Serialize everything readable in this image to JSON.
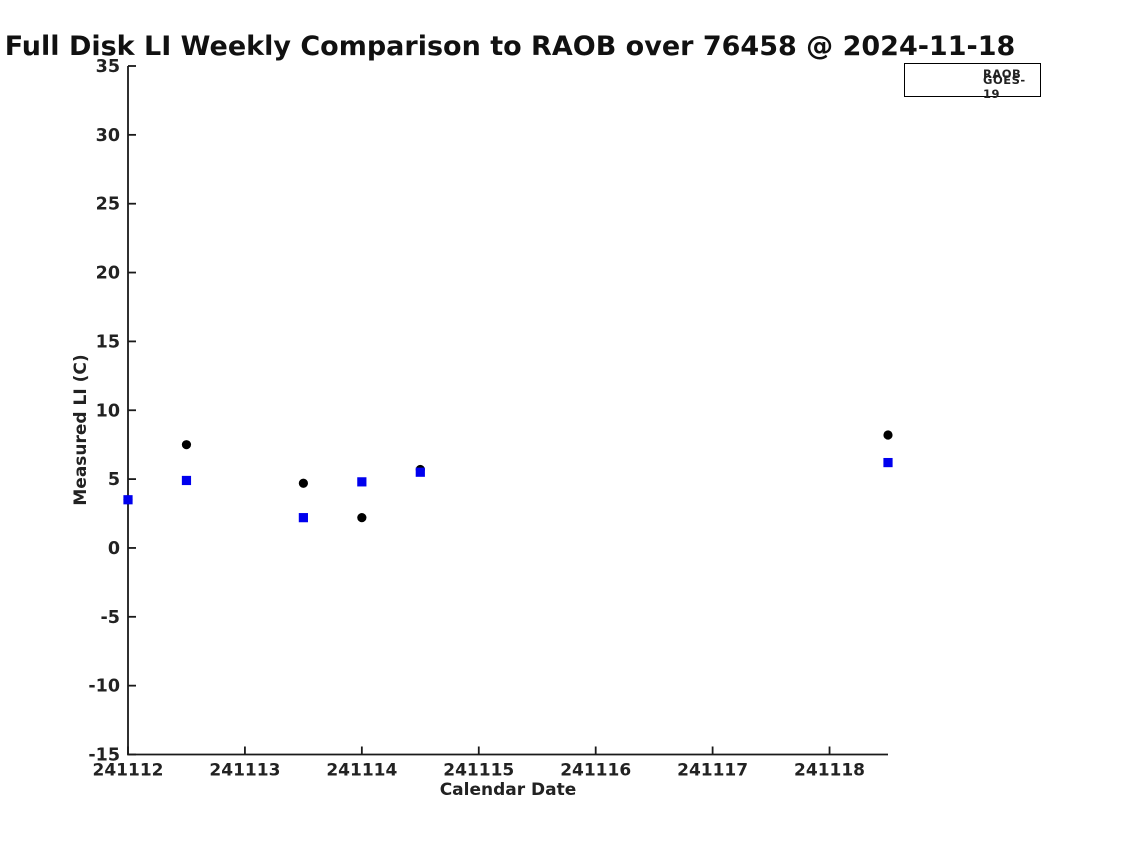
{
  "title": "Full Disk LI Weekly Comparison to RAOB over 76458 @ 2024-11-18",
  "chart_data": {
    "type": "scatter",
    "title": "Full Disk LI Weekly Comparison to RAOB over 76458 @ 2024-11-18",
    "xlabel": "Calendar Date",
    "ylabel": "Measured LI (C)",
    "xlim": [
      241112,
      241118.5
    ],
    "ylim": [
      -15,
      35
    ],
    "x_ticks": [
      241112,
      241113,
      241114,
      241115,
      241116,
      241117,
      241118
    ],
    "y_ticks": [
      -15,
      -10,
      -5,
      0,
      5,
      10,
      15,
      20,
      25,
      30,
      35
    ],
    "grid": false,
    "legend_position": "top-right",
    "axis_color": "#1a1a1a",
    "series": [
      {
        "name": "RAOB",
        "marker": "circle",
        "color": "#000000",
        "points": [
          [
            241112.0,
            3.5
          ],
          [
            241112.5,
            7.5
          ],
          [
            241113.5,
            4.7
          ],
          [
            241114.0,
            2.2
          ],
          [
            241114.5,
            5.7
          ],
          [
            241118.5,
            8.2
          ]
        ]
      },
      {
        "name": "GOES-19",
        "marker": "square",
        "color": "#0000ee",
        "points": [
          [
            241112.0,
            3.5
          ],
          [
            241112.5,
            4.9
          ],
          [
            241113.5,
            2.2
          ],
          [
            241114.0,
            4.8
          ],
          [
            241114.5,
            5.5
          ],
          [
            241118.5,
            6.2
          ]
        ]
      }
    ]
  }
}
